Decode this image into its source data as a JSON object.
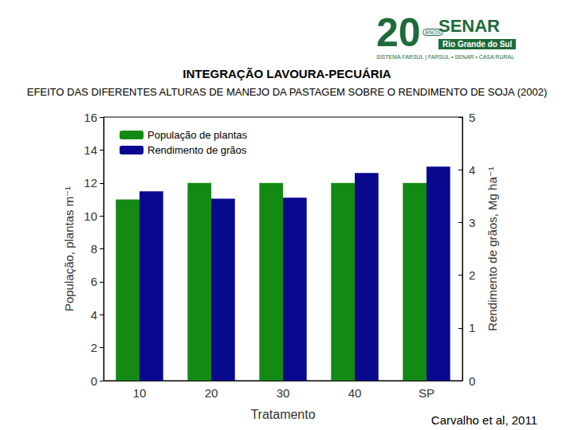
{
  "chart_data": {
    "type": "bar",
    "title": "INTEGRAÇÃO LAVOURA-PECUÁRIA",
    "subtitle": "EFEITO DAS DIFERENTES ALTURAS DE MANEJO DA PASTAGEM SOBRE O RENDIMENTO DE SOJA (2002)",
    "x_label": "Tratamento",
    "y_label": "População, plantas m⁻¹",
    "y2_label": "Rendimento de grãos, Mg ha⁻¹",
    "categories": [
      "10",
      "20",
      "30",
      "40",
      "SP"
    ],
    "series": [
      {
        "name": "População de plantas",
        "color": "#138a13",
        "values": [
          11,
          12,
          12,
          12,
          12
        ]
      },
      {
        "name": "Rendimento de grãos",
        "color": "#08088f",
        "axis": "y2",
        "values": [
          3.59,
          3.45,
          3.47,
          3.94,
          4.06
        ]
      }
    ],
    "ylim": [
      0,
      16
    ],
    "yticks": [
      0,
      2,
      4,
      6,
      8,
      10,
      12,
      14,
      16
    ],
    "y2lim": [
      0,
      5
    ],
    "y2ticks": [
      0,
      1,
      2,
      3,
      4,
      5
    ],
    "grid": false,
    "legend": "upper left",
    "annotations": [
      "Carvalho et al, 2011"
    ]
  },
  "logo": {
    "number": "20",
    "badge": "ANOS",
    "name": "SENAR",
    "region": "Rio Grande do Sul",
    "tagline": "SISTEMA FARSUL | FARSUL • SENAR • CASA RURAL"
  }
}
